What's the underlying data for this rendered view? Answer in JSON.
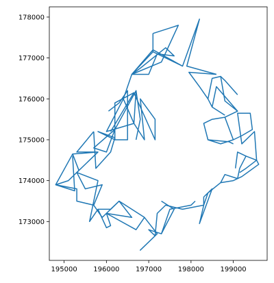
{
  "chart_data": {
    "type": "line",
    "title": "",
    "xlabel": "",
    "ylabel": "",
    "xlim": [
      194650,
      199800
    ],
    "ylim": [
      172050,
      178250
    ],
    "x_ticks": [
      195000,
      196000,
      197000,
      198000,
      199000
    ],
    "y_ticks": [
      173000,
      174000,
      175000,
      176000,
      177000,
      178000
    ],
    "x_tick_labels": [
      "195000",
      "196000",
      "197000",
      "198000",
      "199000"
    ],
    "y_tick_labels": [
      "173000",
      "174000",
      "175000",
      "176000",
      "177000",
      "178000"
    ],
    "grid": false,
    "legend": "none",
    "series": [
      {
        "color": "#1f77b4",
        "segments": [
          [
            [
              197100,
              177600
            ],
            [
              197700,
              177800
            ],
            [
              197300,
              176900
            ],
            [
              196600,
              176600
            ],
            [
              197100,
              177200
            ],
            [
              197800,
              176800
            ],
            [
              198200,
              177950
            ],
            [
              197900,
              176800
            ],
            [
              198600,
              176600
            ]
          ],
          [
            [
              197100,
              177600
            ],
            [
              197100,
              177150
            ],
            [
              196600,
              176600
            ]
          ],
          [
            [
              197100,
              177150
            ],
            [
              197800,
              176800
            ]
          ],
          [
            [
              196600,
              176600
            ],
            [
              197000,
              176600
            ],
            [
              197200,
              177100
            ],
            [
              197600,
              177050
            ],
            [
              197400,
              177250
            ],
            [
              196800,
              176750
            ],
            [
              196600,
              176600
            ]
          ],
          [
            [
              196600,
              176600
            ],
            [
              196400,
              176000
            ],
            [
              196650,
              175400
            ],
            [
              196900,
              175000
            ],
            [
              196800,
              176000
            ],
            [
              197150,
              175500
            ],
            [
              197150,
              175000
            ],
            [
              196650,
              176150
            ],
            [
              196100,
              175200
            ]
          ],
          [
            [
              196400,
              176000
            ],
            [
              196000,
              175200
            ],
            [
              196650,
              175400
            ],
            [
              196700,
              176200
            ],
            [
              196200,
              175250
            ],
            [
              196000,
              174700
            ],
            [
              195700,
              174800
            ],
            [
              196200,
              175250
            ]
          ],
          [
            [
              196650,
              176150
            ],
            [
              196200,
              175900
            ],
            [
              196200,
              175000
            ],
            [
              195800,
              175200
            ],
            [
              196200,
              175050
            ],
            [
              196100,
              174700
            ],
            [
              195750,
              174300
            ],
            [
              195700,
              175200
            ]
          ],
          [
            [
              196200,
              175000
            ],
            [
              196500,
              175000
            ],
            [
              196500,
              176200
            ],
            [
              196300,
              175900
            ],
            [
              196050,
              175700
            ]
          ],
          [
            [
              196700,
              176200
            ],
            [
              196800,
              175500
            ],
            [
              196700,
              175000
            ]
          ],
          [
            [
              195700,
              175200
            ],
            [
              195300,
              174700
            ],
            [
              195800,
              174700
            ],
            [
              195200,
              174650
            ],
            [
              194800,
              173900
            ],
            [
              195250,
              173750
            ],
            [
              195200,
              174600
            ]
          ],
          [
            [
              195200,
              174650
            ],
            [
              195350,
              174250
            ],
            [
              195100,
              174000
            ],
            [
              194800,
              173900
            ]
          ],
          [
            [
              195800,
              174700
            ],
            [
              195300,
              174200
            ],
            [
              195500,
              173800
            ],
            [
              195900,
              173900
            ],
            [
              195700,
              173400
            ],
            [
              195900,
              173100
            ],
            [
              196300,
              173500
            ],
            [
              196600,
              173100
            ],
            [
              196000,
              173200
            ],
            [
              196700,
              172800
            ],
            [
              196900,
              173100
            ]
          ],
          [
            [
              195300,
              174200
            ],
            [
              195800,
              174000
            ],
            [
              195600,
              173000
            ],
            [
              195800,
              173300
            ],
            [
              196100,
              173300
            ],
            [
              196300,
              173500
            ]
          ],
          [
            [
              195700,
              173400
            ],
            [
              195300,
              173500
            ],
            [
              195300,
              173800
            ],
            [
              194800,
              173900
            ]
          ],
          [
            [
              196000,
              173200
            ],
            [
              196100,
              172900
            ],
            [
              196000,
              172850
            ],
            [
              195800,
              173300
            ]
          ],
          [
            [
              196300,
              173500
            ],
            [
              196900,
              173100
            ],
            [
              197200,
              172700
            ],
            [
              196800,
              172300
            ],
            [
              197150,
              172650
            ],
            [
              197200,
              173200
            ],
            [
              197400,
              173400
            ],
            [
              197800,
              173300
            ],
            [
              198300,
              173400
            ],
            [
              198300,
              173600
            ]
          ],
          [
            [
              197150,
              172650
            ],
            [
              197000,
              172800
            ],
            [
              197300,
              172700
            ],
            [
              197600,
              173300
            ],
            [
              197300,
              173500
            ]
          ],
          [
            [
              197300,
              172700
            ],
            [
              197500,
              173300
            ],
            [
              198000,
              173400
            ],
            [
              198100,
              173500
            ]
          ],
          [
            [
              198300,
              173600
            ],
            [
              198500,
              173800
            ],
            [
              198200,
              172950
            ],
            [
              198300,
              173400
            ],
            [
              198400,
              173700
            ],
            [
              198700,
              173950
            ],
            [
              199000,
              174000
            ],
            [
              199200,
              174100
            ],
            [
              199600,
              174400
            ],
            [
              199550,
              174500
            ]
          ],
          [
            [
              198700,
              173950
            ],
            [
              198800,
              174150
            ],
            [
              199100,
              174050
            ],
            [
              199150,
              174300
            ],
            [
              199300,
              174600
            ],
            [
              199100,
              174700
            ],
            [
              199050,
              174300
            ]
          ],
          [
            [
              199300,
              174600
            ],
            [
              199550,
              174500
            ],
            [
              199500,
              175200
            ],
            [
              199200,
              174900
            ],
            [
              199100,
              175650
            ],
            [
              199400,
              175650
            ],
            [
              199450,
              175250
            ],
            [
              199200,
              175100
            ],
            [
              199000,
              175000
            ]
          ],
          [
            [
              199000,
              175000
            ],
            [
              198800,
              175550
            ],
            [
              199100,
              175700
            ],
            [
              198600,
              176300
            ],
            [
              198500,
              175800
            ],
            [
              198800,
              175600
            ]
          ],
          [
            [
              199000,
              175000
            ],
            [
              198700,
              174900
            ],
            [
              198400,
              175000
            ],
            [
              198300,
              175400
            ],
            [
              198500,
              175500
            ],
            [
              198800,
              175550
            ]
          ],
          [
            [
              198400,
              175000
            ],
            [
              198900,
              174950
            ],
            [
              199000,
              174900
            ]
          ],
          [
            [
              198500,
              175800
            ],
            [
              198400,
              176000
            ],
            [
              198500,
              176500
            ],
            [
              198700,
              176550
            ],
            [
              198800,
              175950
            ],
            [
              199100,
              175700
            ]
          ],
          [
            [
              198400,
              176000
            ],
            [
              198200,
              176300
            ],
            [
              197950,
              176650
            ],
            [
              198600,
              176600
            ]
          ],
          [
            [
              198700,
              176550
            ],
            [
              198800,
              176450
            ],
            [
              199100,
              176100
            ]
          ],
          [
            [
              199550,
              174500
            ],
            [
              199300,
              174300
            ],
            [
              199150,
              174200
            ]
          ]
        ]
      }
    ]
  }
}
